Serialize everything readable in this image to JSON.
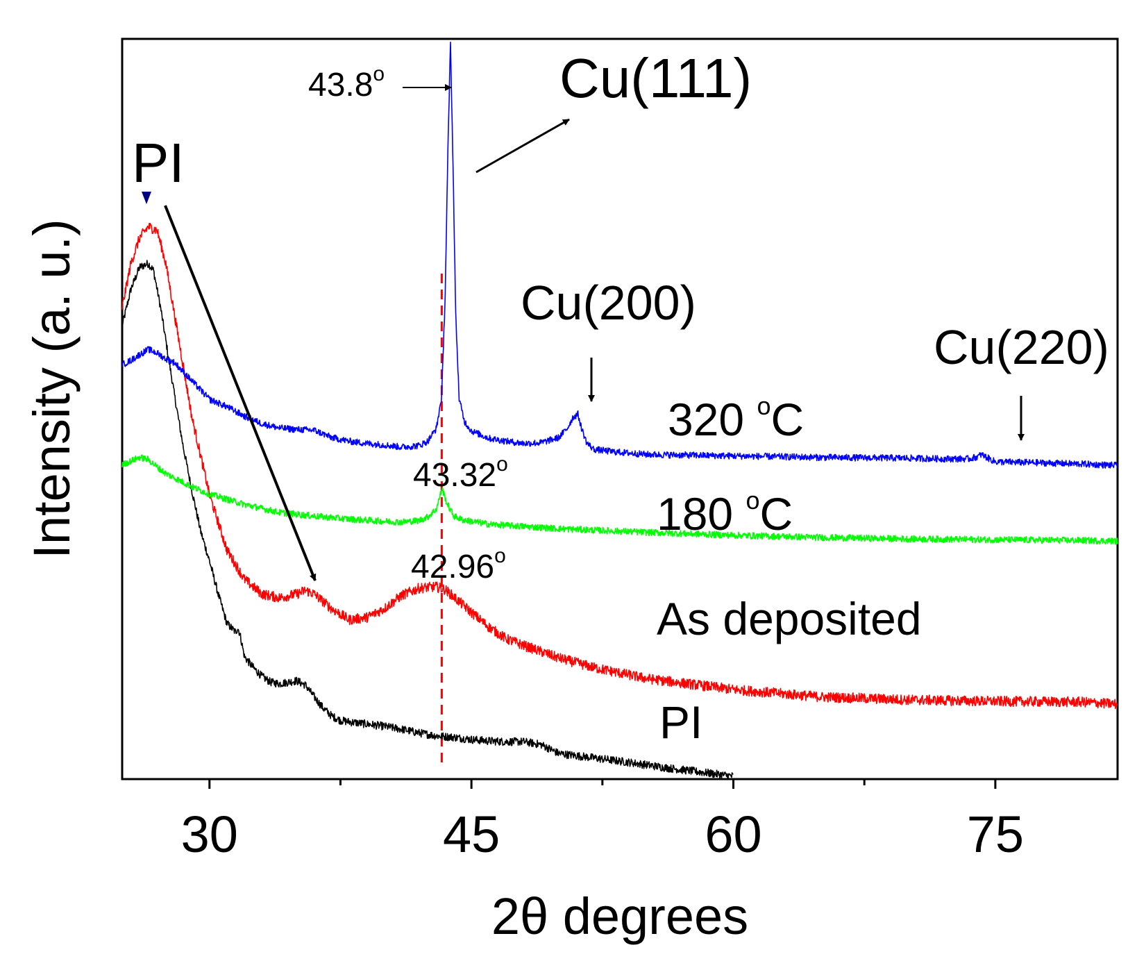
{
  "chart_data": {
    "type": "line",
    "title": "",
    "xlabel": "2θ  degrees",
    "ylabel": "Intensity  (a. u.)",
    "xlim": [
      25,
      82
    ],
    "ylim": [
      0,
      100
    ],
    "xticks_major": [
      30,
      45,
      60,
      75
    ],
    "xticks_minor": [
      37.5,
      52.5,
      67.5
    ],
    "y_ticks_shown": false,
    "grid": false,
    "series": [
      {
        "name": "PI",
        "color": "#000000",
        "x": [
          25,
          25.5,
          26,
          26.5,
          26.8,
          27.2,
          27.6,
          28,
          28.5,
          29,
          29.5,
          30,
          30.5,
          31,
          31.5,
          31.62,
          31.75,
          32,
          32.5,
          33,
          33.5,
          34,
          34.5,
          35,
          35.5,
          36,
          36.5,
          37,
          37.5,
          38,
          39,
          40,
          41,
          42,
          43,
          44,
          45,
          46,
          47,
          48,
          49,
          50,
          52,
          54,
          56,
          58,
          60
        ],
        "y": [
          61.5,
          66.5,
          69.5,
          70.0,
          69.0,
          64.0,
          58.0,
          52.0,
          45.0,
          39.0,
          33.5,
          29.5,
          25.0,
          21.0,
          19.8,
          20.4,
          19.5,
          16.5,
          15.0,
          13.8,
          13.0,
          12.8,
          13.0,
          13.2,
          12.6,
          11.0,
          9.5,
          8.4,
          7.8,
          7.6,
          7.3,
          7.0,
          6.6,
          6.1,
          5.7,
          5.5,
          5.2,
          5.0,
          4.9,
          4.9,
          4.5,
          3.3,
          2.7,
          2.1,
          1.4,
          0.8,
          0.2
        ]
      },
      {
        "name": "As deposited",
        "color": "#ff0000",
        "x": [
          25,
          25.5,
          26,
          26.5,
          27,
          27.5,
          28,
          28.5,
          29,
          30,
          31,
          32,
          33,
          34,
          35,
          35.5,
          36,
          37,
          38,
          39,
          40,
          41,
          42,
          42.96,
          43.5,
          44,
          45,
          46,
          47,
          48,
          50,
          52,
          55,
          60,
          65,
          70,
          75,
          80,
          82
        ],
        "y": [
          64.0,
          70.0,
          73.5,
          75.0,
          74.5,
          70.0,
          63.0,
          56.0,
          49.0,
          38.5,
          31.0,
          27.0,
          25.0,
          24.5,
          25.0,
          25.5,
          25.0,
          23.0,
          21.5,
          21.8,
          23.0,
          24.8,
          25.8,
          26.0,
          25.6,
          24.6,
          22.5,
          20.5,
          18.9,
          18.0,
          16.3,
          15.0,
          13.5,
          12.0,
          11.0,
          10.6,
          10.4,
          10.3,
          10.0
        ]
      },
      {
        "name": "180 °C",
        "color": "#00ff00",
        "x": [
          25,
          25.5,
          26,
          26.5,
          27,
          27.5,
          28,
          29,
          30,
          32,
          34,
          36,
          38,
          40,
          41,
          42,
          42.5,
          43,
          43.32,
          43.6,
          44,
          44.5,
          45,
          46,
          48,
          50,
          55,
          60,
          65,
          70,
          75,
          80,
          82
        ],
        "y": [
          42.6,
          43.1,
          43.6,
          43.3,
          42.3,
          41.4,
          40.8,
          39.6,
          38.6,
          37.2,
          36.1,
          35.6,
          35.2,
          34.9,
          34.8,
          35.0,
          35.5,
          36.6,
          39.4,
          37.3,
          35.6,
          35.1,
          34.9,
          34.5,
          34.2,
          33.9,
          33.4,
          33.0,
          32.7,
          32.5,
          32.4,
          32.3,
          32.2
        ]
      },
      {
        "name": "320 °C",
        "color": "#0000ff",
        "x": [
          25,
          25.5,
          26,
          26.5,
          27,
          27.5,
          28,
          29,
          30,
          31,
          32,
          33,
          34,
          35,
          36,
          37,
          38,
          39,
          40,
          41,
          42,
          42.5,
          43,
          43.3,
          43.5,
          43.65,
          43.8,
          43.95,
          44.1,
          44.3,
          44.6,
          45,
          45.5,
          46,
          47,
          48,
          49,
          50,
          50.5,
          50.8,
          51.1,
          51.3,
          51.6,
          52,
          53,
          55,
          60,
          65,
          70,
          72,
          73.5,
          74,
          74.2,
          74.5,
          75,
          77,
          80,
          82
        ],
        "y": [
          56.2,
          56.8,
          57.6,
          58.3,
          57.8,
          57.0,
          56.5,
          54.0,
          51.5,
          50.5,
          49.2,
          48.2,
          47.6,
          47.4,
          47.3,
          46.3,
          45.8,
          45.5,
          45.3,
          45.0,
          45.2,
          45.8,
          47.6,
          52.0,
          66.0,
          85.0,
          100.0,
          83.0,
          63.0,
          51.5,
          48.5,
          47.2,
          46.7,
          46.2,
          45.8,
          45.5,
          45.6,
          46.3,
          47.6,
          49.0,
          49.5,
          47.6,
          45.6,
          44.7,
          44.4,
          44.0,
          43.8,
          43.6,
          43.5,
          43.4,
          43.4,
          43.7,
          44.0,
          43.6,
          43.0,
          42.9,
          42.7,
          42.5
        ]
      }
    ],
    "annotations": {
      "curve_labels": {
        "c320": {
          "base": "320 ",
          "sup": "o",
          "unit": "C"
        },
        "c180": {
          "base": "180 ",
          "sup": "o",
          "unit": "C"
        },
        "as_dep": "As deposited",
        "pi": "PI"
      },
      "peaks": {
        "cu111": "Cu(111)",
        "cu200": "Cu(200)",
        "cu220": "Cu(220)",
        "pi_peak": "PI"
      },
      "angles": {
        "a438": {
          "base": "43.8",
          "sup": "o"
        },
        "a4332": {
          "base": "43.32",
          "sup": "o"
        },
        "a4296": {
          "base": "42.96",
          "sup": "o"
        }
      },
      "reference_line_x": 43.3,
      "reference_line_color": "#ff0000",
      "pi_marker_color": "#000080"
    }
  }
}
